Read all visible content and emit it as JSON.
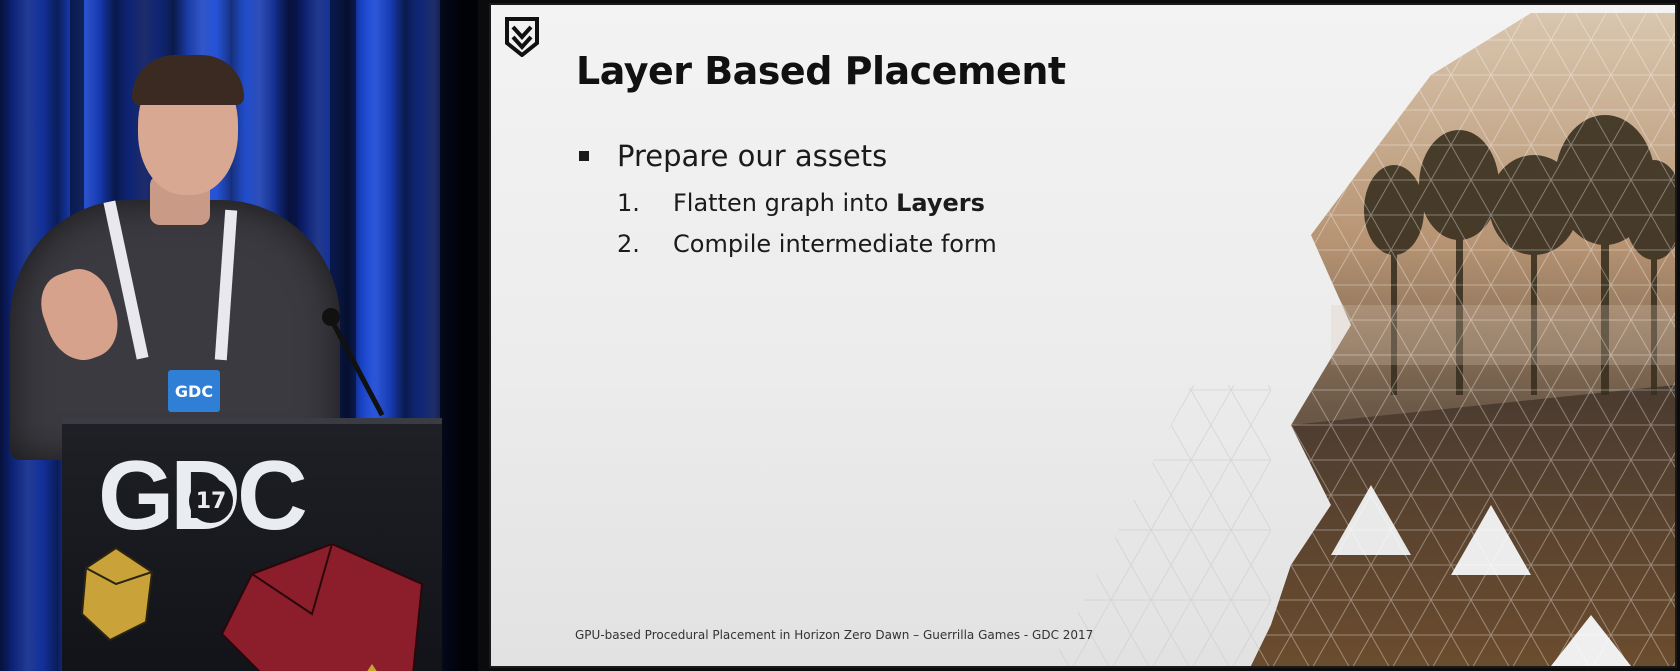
{
  "video": {
    "badge_text": "GDC",
    "podium_logo": "GDC",
    "podium_year": "17"
  },
  "slide": {
    "logo": "guerrilla-logo-icon",
    "title": "Layer Based Placement",
    "bullet": "Prepare our assets",
    "steps": [
      {
        "number": "1.",
        "text_before": "Flatten graph into ",
        "emphasis": "Layers"
      },
      {
        "number": "2.",
        "text_before": "Compile intermediate form",
        "emphasis": ""
      }
    ],
    "footer": "GPU-based Procedural Placement in Horizon Zero Dawn – Guerrilla Games - GDC 2017"
  },
  "colors": {
    "curtain_blue": "#1943c8",
    "slide_bg": "#f0f0f0",
    "text": "#1b1b1b",
    "badge_blue": "#2f7fd6"
  }
}
